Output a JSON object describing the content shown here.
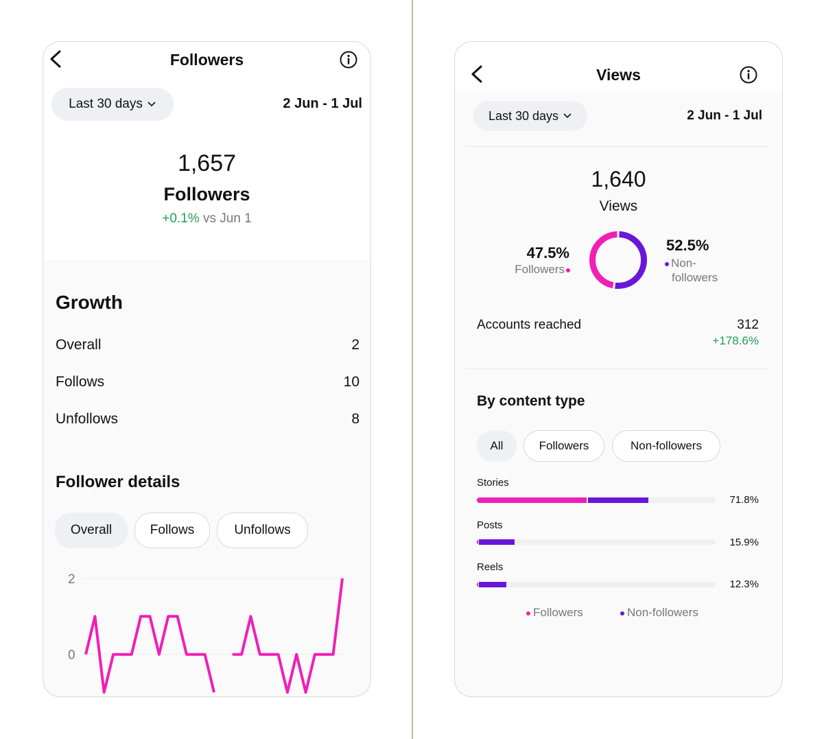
{
  "colors": {
    "followers": "#f01fb6",
    "non_followers": "#6a16d8",
    "positive": "#1e9e55"
  },
  "icons": {
    "back": "chevron-left-icon",
    "info": "info-icon",
    "dropdown": "chevron-down-icon"
  },
  "followers_screen": {
    "title": "Followers",
    "range_selector": "Last 30 days",
    "date_range": "2 Jun - 1 Jul",
    "total": "1,657",
    "total_label": "Followers",
    "change": "+0.1%",
    "change_suffix": "vs Jun 1",
    "growth": {
      "title": "Growth",
      "rows": [
        {
          "label": "Overall",
          "value": "2"
        },
        {
          "label": "Follows",
          "value": "10"
        },
        {
          "label": "Unfollows",
          "value": "8"
        }
      ]
    },
    "details": {
      "title": "Follower details",
      "tabs": [
        "Overall",
        "Follows",
        "Unfollows"
      ],
      "active_tab": "Overall"
    },
    "chart_data": {
      "type": "line",
      "series": [
        {
          "values": [
            0,
            1,
            -1,
            0,
            0,
            0,
            1,
            1,
            0,
            1,
            1,
            0,
            0,
            0,
            -1,
            null,
            0,
            0,
            1,
            0,
            0,
            0,
            -1,
            0,
            -1,
            0,
            0,
            0,
            2
          ]
        }
      ],
      "y_ticks": [
        "2",
        "0"
      ],
      "ylim": [
        -1,
        2
      ],
      "grid": true
    }
  },
  "views_screen": {
    "title": "Views",
    "range_selector": "Last 30 days",
    "date_range": "2 Jun - 1 Jul",
    "total": "1,640",
    "total_label": "Views",
    "followers_pct": "47.5%",
    "followers_label": "Followers",
    "non_followers_pct": "52.5%",
    "non_followers_label_1": "Non-",
    "non_followers_label_2": "followers",
    "chart_data": {
      "type": "pie",
      "slices": [
        {
          "name": "Followers",
          "value": 47.5
        },
        {
          "name": "Non-followers",
          "value": 52.5
        }
      ]
    },
    "accounts_reached": {
      "label": "Accounts reached",
      "value": "312",
      "change": "+178.6%"
    },
    "content_type": {
      "title": "By content type",
      "tabs": [
        "All",
        "Followers",
        "Non-followers"
      ],
      "active_tab": "All",
      "chart_data": {
        "type": "bar",
        "categories": [
          "Stories",
          "Posts",
          "Reels"
        ],
        "totals": [
          "71.8%",
          "15.9%",
          "12.3%"
        ],
        "series": [
          {
            "name": "Followers",
            "values": [
              46.5,
              1.0,
              0.8
            ]
          },
          {
            "name": "Non-followers",
            "values": [
              25.3,
              14.9,
              11.5
            ]
          }
        ],
        "xlim": [
          0,
          100
        ]
      },
      "legend": [
        "Followers",
        "Non-followers"
      ]
    }
  }
}
